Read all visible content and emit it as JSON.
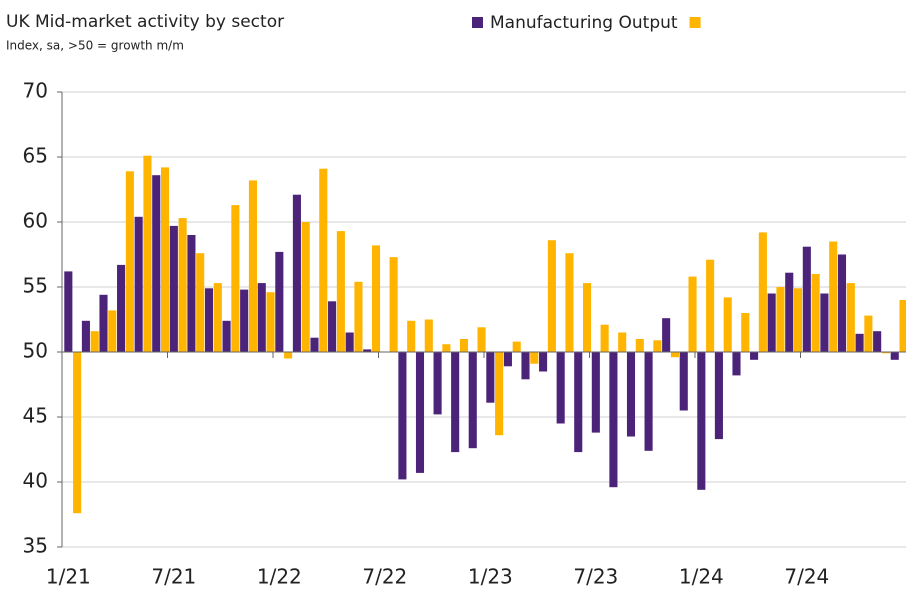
{
  "chart_data": {
    "type": "bar",
    "title": "UK Mid-market activity by sector",
    "subtitle": "Index, sa, >50 = growth m/m",
    "categories": [
      "1/21",
      null,
      null,
      null,
      null,
      null,
      "7/21",
      null,
      null,
      null,
      null,
      null,
      "1/22",
      null,
      null,
      null,
      null,
      null,
      "7/22",
      null,
      null,
      null,
      null,
      null,
      "1/23",
      null,
      null,
      null,
      null,
      null,
      "7/23",
      null,
      null,
      null,
      null,
      null,
      "1/24",
      null,
      null,
      null,
      null,
      null,
      "7/24",
      null,
      null,
      null,
      null,
      null
    ],
    "series": [
      {
        "name": "Manufacturing Output",
        "color": "#4b2378",
        "values": [
          56.2,
          52.4,
          54.4,
          56.7,
          60.4,
          63.6,
          59.7,
          59.0,
          54.9,
          52.4,
          54.8,
          55.3,
          57.7,
          62.1,
          51.1,
          53.9,
          51.5,
          50.2,
          50.0,
          40.2,
          40.7,
          45.2,
          42.3,
          42.6,
          46.1,
          48.9,
          47.9,
          48.5,
          44.5,
          42.3,
          43.8,
          39.6,
          43.5,
          42.4,
          52.6,
          45.5,
          39.4,
          43.3,
          48.2,
          49.4,
          54.5,
          56.1,
          58.1,
          54.5,
          57.5,
          51.4,
          51.6,
          49.4
        ]
      },
      {
        "color": "#ffb400",
        "values": [
          37.6,
          51.6,
          53.2,
          63.9,
          65.1,
          64.2,
          60.3,
          57.6,
          55.3,
          61.3,
          63.2,
          54.6,
          49.5,
          60.0,
          64.1,
          59.3,
          55.4,
          58.2,
          57.3,
          52.4,
          52.5,
          50.6,
          51.0,
          51.9,
          43.6,
          50.8,
          49.1,
          58.6,
          57.6,
          55.3,
          52.1,
          51.5,
          51.0,
          50.9,
          49.6,
          55.8,
          57.1,
          54.2,
          53.0,
          59.2,
          55.0,
          54.9,
          56.0,
          58.5,
          55.3,
          52.8,
          49.9,
          54.0
        ]
      }
    ],
    "ylim": [
      35,
      70
    ],
    "yticks": [
      35,
      40,
      45,
      50,
      55,
      60,
      65,
      70
    ],
    "x_axis_at": 50,
    "grid": true
  }
}
